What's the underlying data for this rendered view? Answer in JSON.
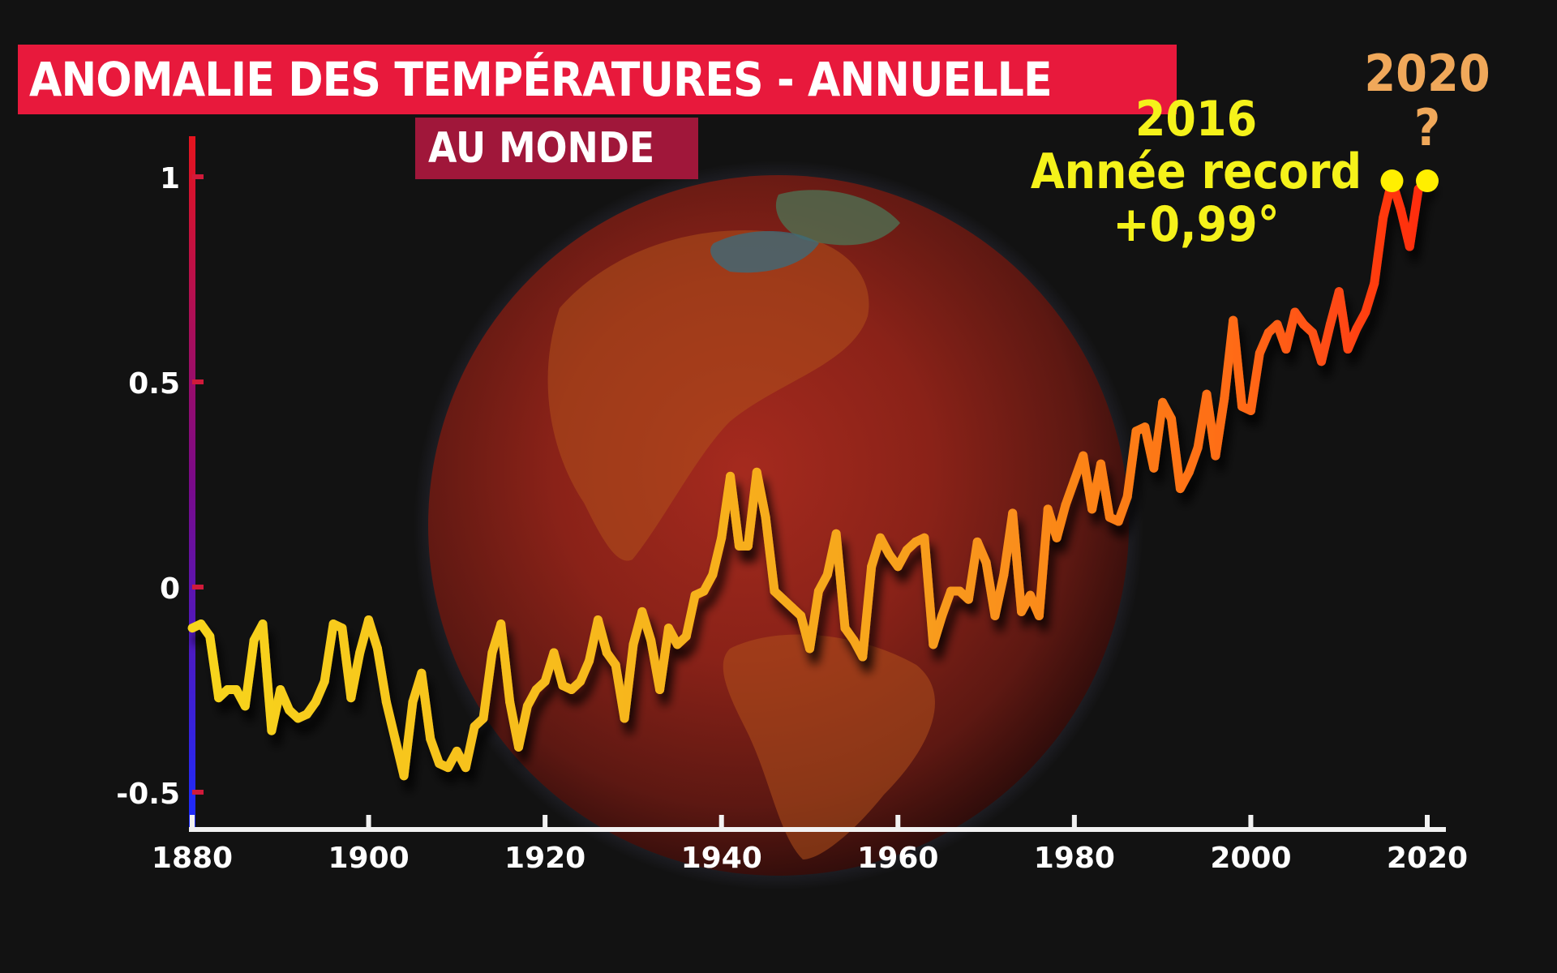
{
  "title": "ANOMALIE DES TEMPÉRATURES - ANNUELLE",
  "subtitle": "AU MONDE",
  "annotations": {
    "record_year": "2016",
    "record_label": "Année record",
    "record_value": "+0,99°",
    "latest_year": "2020",
    "latest_mark": "?"
  },
  "colors": {
    "title_bg": "#e8193c",
    "subtitle_bg": "#a0173a",
    "line_start": "#f7d51e",
    "line_end": "#ff2a10",
    "highlight_point": "#ffef00",
    "axis_top": "#e6141e",
    "axis_bottom": "#1a2cff"
  },
  "chart_data": {
    "type": "line",
    "title": "ANOMALIE DES TEMPÉRATURES - ANNUELLE",
    "subtitle": "AU MONDE",
    "xlabel": "",
    "ylabel": "",
    "xlim": [
      1880,
      2020
    ],
    "ylim": [
      -0.6,
      1.1
    ],
    "x_ticks": [
      1880,
      1900,
      1920,
      1940,
      1960,
      1980,
      2000,
      2020
    ],
    "y_ticks": [
      -0.5,
      0,
      0.5,
      1
    ],
    "y_tick_labels": [
      "-0.5",
      "0",
      "0.5",
      "1"
    ],
    "grid": false,
    "series": [
      {
        "x": [
          1880,
          1881,
          1882,
          1883,
          1884,
          1885,
          1886,
          1887,
          1888,
          1889,
          1890,
          1891,
          1892,
          1893,
          1894,
          1895,
          1896,
          1897,
          1898,
          1899,
          1900,
          1901,
          1902,
          1903,
          1904,
          1905,
          1906,
          1907,
          1908,
          1909,
          1910,
          1911,
          1912,
          1913,
          1914,
          1915,
          1916,
          1917,
          1918,
          1919,
          1920,
          1921,
          1922,
          1923,
          1924,
          1925,
          1926,
          1927,
          1928,
          1929,
          1930,
          1931,
          1932,
          1933,
          1934,
          1935,
          1936,
          1937,
          1938,
          1939,
          1940,
          1941,
          1942,
          1943,
          1944,
          1945,
          1946,
          1947,
          1948,
          1949,
          1950,
          1951,
          1952,
          1953,
          1954,
          1955,
          1956,
          1957,
          1958,
          1959,
          1960,
          1961,
          1962,
          1963,
          1964,
          1965,
          1966,
          1967,
          1968,
          1969,
          1970,
          1971,
          1972,
          1973,
          1974,
          1975,
          1976,
          1977,
          1978,
          1979,
          1980,
          1981,
          1982,
          1983,
          1984,
          1985,
          1986,
          1987,
          1988,
          1989,
          1990,
          1991,
          1992,
          1993,
          1994,
          1995,
          1996,
          1997,
          1998,
          1999,
          2000,
          2001,
          2002,
          2003,
          2004,
          2005,
          2006,
          2007,
          2008,
          2009,
          2010,
          2011,
          2012,
          2013,
          2014,
          2015,
          2016,
          2017,
          2018,
          2019,
          2020
        ],
        "values": [
          -0.1,
          -0.09,
          -0.12,
          -0.27,
          -0.25,
          -0.25,
          -0.29,
          -0.13,
          -0.09,
          -0.35,
          -0.25,
          -0.3,
          -0.32,
          -0.31,
          -0.28,
          -0.23,
          -0.09,
          -0.1,
          -0.27,
          -0.16,
          -0.08,
          -0.15,
          -0.28,
          -0.37,
          -0.46,
          -0.28,
          -0.21,
          -0.37,
          -0.43,
          -0.44,
          -0.4,
          -0.44,
          -0.34,
          -0.32,
          -0.16,
          -0.09,
          -0.28,
          -0.39,
          -0.29,
          -0.25,
          -0.23,
          -0.16,
          -0.24,
          -0.25,
          -0.23,
          -0.18,
          -0.08,
          -0.16,
          -0.19,
          -0.32,
          -0.14,
          -0.06,
          -0.13,
          -0.25,
          -0.1,
          -0.14,
          -0.12,
          -0.02,
          -0.01,
          0.03,
          0.12,
          0.27,
          0.1,
          0.1,
          0.28,
          0.17,
          -0.01,
          -0.03,
          -0.05,
          -0.07,
          -0.15,
          -0.01,
          0.03,
          0.13,
          -0.1,
          -0.13,
          -0.17,
          0.05,
          0.12,
          0.08,
          0.05,
          0.09,
          0.11,
          0.12,
          -0.14,
          -0.07,
          -0.01,
          -0.01,
          -0.03,
          0.11,
          0.06,
          -0.07,
          0.03,
          0.18,
          -0.06,
          -0.02,
          -0.07,
          0.19,
          0.12,
          0.2,
          0.26,
          0.32,
          0.19,
          0.3,
          0.17,
          0.16,
          0.22,
          0.38,
          0.39,
          0.29,
          0.45,
          0.41,
          0.24,
          0.28,
          0.34,
          0.47,
          0.32,
          0.46,
          0.65,
          0.44,
          0.43,
          0.57,
          0.62,
          0.64,
          0.58,
          0.67,
          0.64,
          0.62,
          0.55,
          0.64,
          0.72,
          0.58,
          0.63,
          0.67,
          0.74,
          0.9,
          0.99,
          0.92,
          0.83,
          0.97,
          0.99
        ]
      }
    ],
    "highlights": [
      {
        "x": 2016,
        "y": 0.99
      },
      {
        "x": 2020,
        "y": 0.99
      }
    ]
  }
}
